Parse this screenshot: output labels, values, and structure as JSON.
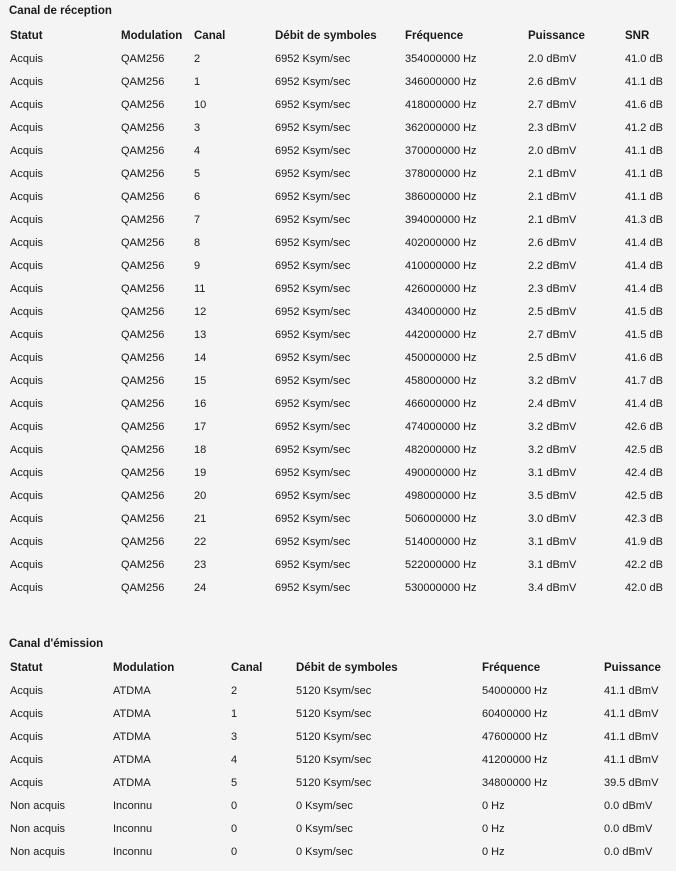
{
  "downstream": {
    "title": "Canal de réception",
    "headers": [
      "Statut",
      "Modulation",
      "Canal",
      "Débit de symboles",
      "Fréquence",
      "Puissance",
      "SNR"
    ],
    "rows": [
      [
        "Acquis",
        "QAM256",
        "2",
        "6952 Ksym/sec",
        "354000000 Hz",
        "2.0 dBmV",
        "41.0 dB"
      ],
      [
        "Acquis",
        "QAM256",
        "1",
        "6952 Ksym/sec",
        "346000000 Hz",
        "2.6 dBmV",
        "41.1 dB"
      ],
      [
        "Acquis",
        "QAM256",
        "10",
        "6952 Ksym/sec",
        "418000000 Hz",
        "2.7 dBmV",
        "41.6 dB"
      ],
      [
        "Acquis",
        "QAM256",
        "3",
        "6952 Ksym/sec",
        "362000000 Hz",
        "2.3 dBmV",
        "41.2 dB"
      ],
      [
        "Acquis",
        "QAM256",
        "4",
        "6952 Ksym/sec",
        "370000000 Hz",
        "2.0 dBmV",
        "41.1 dB"
      ],
      [
        "Acquis",
        "QAM256",
        "5",
        "6952 Ksym/sec",
        "378000000 Hz",
        "2.1 dBmV",
        "41.1 dB"
      ],
      [
        "Acquis",
        "QAM256",
        "6",
        "6952 Ksym/sec",
        "386000000 Hz",
        "2.1 dBmV",
        "41.1 dB"
      ],
      [
        "Acquis",
        "QAM256",
        "7",
        "6952 Ksym/sec",
        "394000000 Hz",
        "2.1 dBmV",
        "41.3 dB"
      ],
      [
        "Acquis",
        "QAM256",
        "8",
        "6952 Ksym/sec",
        "402000000 Hz",
        "2.6 dBmV",
        "41.4 dB"
      ],
      [
        "Acquis",
        "QAM256",
        "9",
        "6952 Ksym/sec",
        "410000000 Hz",
        "2.2 dBmV",
        "41.4 dB"
      ],
      [
        "Acquis",
        "QAM256",
        "11",
        "6952 Ksym/sec",
        "426000000 Hz",
        "2.3 dBmV",
        "41.4 dB"
      ],
      [
        "Acquis",
        "QAM256",
        "12",
        "6952 Ksym/sec",
        "434000000 Hz",
        "2.5 dBmV",
        "41.5 dB"
      ],
      [
        "Acquis",
        "QAM256",
        "13",
        "6952 Ksym/sec",
        "442000000 Hz",
        "2.7 dBmV",
        "41.5 dB"
      ],
      [
        "Acquis",
        "QAM256",
        "14",
        "6952 Ksym/sec",
        "450000000 Hz",
        "2.5 dBmV",
        "41.6 dB"
      ],
      [
        "Acquis",
        "QAM256",
        "15",
        "6952 Ksym/sec",
        "458000000 Hz",
        "3.2 dBmV",
        "41.7 dB"
      ],
      [
        "Acquis",
        "QAM256",
        "16",
        "6952 Ksym/sec",
        "466000000 Hz",
        "2.4 dBmV",
        "41.4 dB"
      ],
      [
        "Acquis",
        "QAM256",
        "17",
        "6952 Ksym/sec",
        "474000000 Hz",
        "3.2 dBmV",
        "42.6 dB"
      ],
      [
        "Acquis",
        "QAM256",
        "18",
        "6952 Ksym/sec",
        "482000000 Hz",
        "3.2 dBmV",
        "42.5 dB"
      ],
      [
        "Acquis",
        "QAM256",
        "19",
        "6952 Ksym/sec",
        "490000000 Hz",
        "3.1 dBmV",
        "42.4 dB"
      ],
      [
        "Acquis",
        "QAM256",
        "20",
        "6952 Ksym/sec",
        "498000000 Hz",
        "3.5 dBmV",
        "42.5 dB"
      ],
      [
        "Acquis",
        "QAM256",
        "21",
        "6952 Ksym/sec",
        "506000000 Hz",
        "3.0 dBmV",
        "42.3 dB"
      ],
      [
        "Acquis",
        "QAM256",
        "22",
        "6952 Ksym/sec",
        "514000000 Hz",
        "3.1 dBmV",
        "41.9 dB"
      ],
      [
        "Acquis",
        "QAM256",
        "23",
        "6952 Ksym/sec",
        "522000000 Hz",
        "3.1 dBmV",
        "42.2 dB"
      ],
      [
        "Acquis",
        "QAM256",
        "24",
        "6952 Ksym/sec",
        "530000000 Hz",
        "3.4 dBmV",
        "42.0 dB"
      ]
    ]
  },
  "upstream": {
    "title": "Canal d'émission",
    "headers": [
      "Statut",
      "Modulation",
      "Canal",
      "Débit de symboles",
      "Fréquence",
      "Puissance"
    ],
    "rows": [
      [
        "Acquis",
        "ATDMA",
        "2",
        "5120 Ksym/sec",
        "54000000 Hz",
        "41.1 dBmV"
      ],
      [
        "Acquis",
        "ATDMA",
        "1",
        "5120 Ksym/sec",
        "60400000 Hz",
        "41.1 dBmV"
      ],
      [
        "Acquis",
        "ATDMA",
        "3",
        "5120 Ksym/sec",
        "47600000 Hz",
        "41.1 dBmV"
      ],
      [
        "Acquis",
        "ATDMA",
        "4",
        "5120 Ksym/sec",
        "41200000 Hz",
        "41.1 dBmV"
      ],
      [
        "Acquis",
        "ATDMA",
        "5",
        "5120 Ksym/sec",
        "34800000 Hz",
        "39.5 dBmV"
      ],
      [
        "Non acquis",
        "Inconnu",
        "0",
        "0 Ksym/sec",
        "0 Hz",
        "0.0 dBmV"
      ],
      [
        "Non acquis",
        "Inconnu",
        "0",
        "0 Ksym/sec",
        "0 Hz",
        "0.0 dBmV"
      ],
      [
        "Non acquis",
        "Inconnu",
        "0",
        "0 Ksym/sec",
        "0 Hz",
        "0.0 dBmV"
      ]
    ]
  }
}
